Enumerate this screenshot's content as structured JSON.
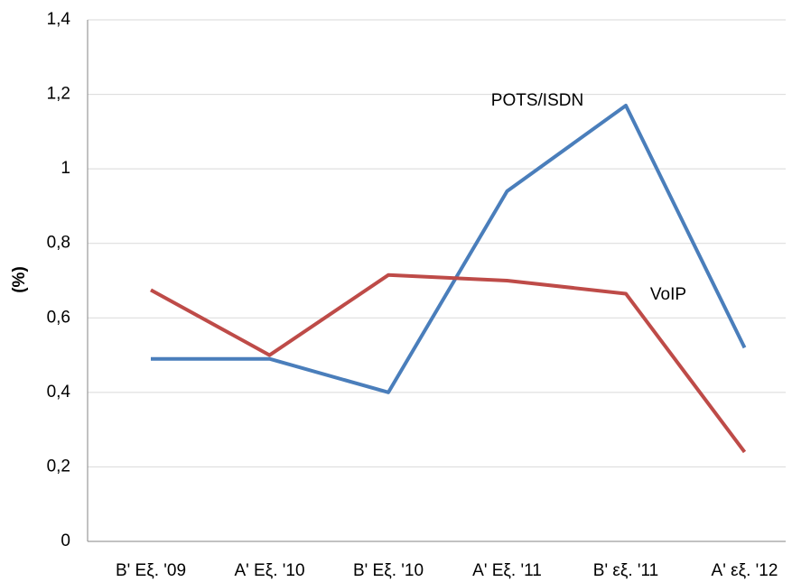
{
  "chart_data": {
    "type": "line",
    "ylabel": "(%)",
    "categories": [
      "B' Εξ. '09",
      "A' Εξ. '10",
      "B' Εξ. '10",
      "A' Εξ. '11",
      "B' εξ. '11",
      "A' εξ. '12"
    ],
    "series": [
      {
        "name": "POTS/ISDN",
        "color": "#4a7ebb",
        "values": [
          0.49,
          0.49,
          0.4,
          0.94,
          1.17,
          0.52
        ]
      },
      {
        "name": "VoIP",
        "color": "#be4b48",
        "values": [
          0.675,
          0.5,
          0.715,
          0.7,
          0.665,
          0.24
        ]
      }
    ],
    "ylim": [
      0,
      1.4
    ],
    "yticks": [
      0,
      {
        "value": 0.2,
        "label": "0,2"
      },
      {
        "value": 0.4,
        "label": "0,4"
      },
      {
        "value": 0.6,
        "label": "0,6"
      },
      {
        "value": 0.8,
        "label": "0,8"
      },
      1,
      {
        "value": 1.2,
        "label": "1,2"
      },
      {
        "value": 1.4,
        "label": "1,4"
      }
    ],
    "grid": true
  }
}
